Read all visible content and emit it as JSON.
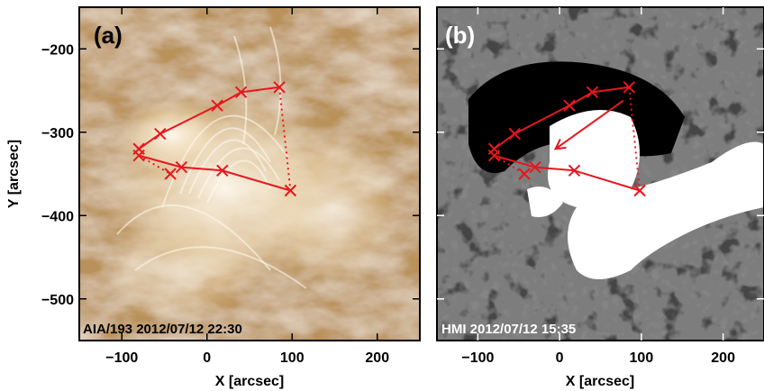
{
  "figure": {
    "panel_a": {
      "label": "(a)",
      "annotation": "AIA/193 2012/07/12 22:30",
      "colors": {
        "base": "#b9915a",
        "bright": "#fff8ea",
        "frame": "#000000"
      }
    },
    "panel_b": {
      "label": "(b)",
      "annotation": "HMI 2012/07/12 15:35",
      "colors": {
        "base": "#7d7d7d",
        "positive": "#ffffff",
        "negative": "#000000"
      }
    },
    "axes": {
      "xlabel": "X [arcsec]",
      "ylabel": "Y [arcsec]",
      "xlim": [
        -150,
        250
      ],
      "ylim": [
        -550,
        -150
      ],
      "xticks": [
        -100,
        0,
        100,
        200
      ],
      "yticks": [
        -200,
        -300,
        -400,
        -500
      ],
      "xtick_labels": [
        "−100",
        "0",
        "100",
        "200"
      ],
      "ytick_labels": [
        "−200",
        "−300",
        "−400",
        "−500"
      ]
    },
    "overlay": {
      "color": "#e8161e",
      "marker": "x",
      "upper_path": [
        [
          -80,
          -320
        ],
        [
          -55,
          -302
        ],
        [
          12,
          -268
        ],
        [
          40,
          -252
        ],
        [
          85,
          -246
        ]
      ],
      "lower_path": [
        [
          -80,
          -328
        ],
        [
          -30,
          -342
        ],
        [
          18,
          -346
        ],
        [
          98,
          -370
        ]
      ],
      "dotted_right": [
        [
          85,
          -246
        ],
        [
          98,
          -370
        ]
      ],
      "dotted_left": [
        [
          -80,
          -328
        ],
        [
          -43,
          -350
        ]
      ],
      "extra_marker": [
        -43,
        -350
      ],
      "arrow_b": {
        "from": [
          78,
          -262
        ],
        "to": [
          -5,
          -320
        ]
      }
    }
  }
}
